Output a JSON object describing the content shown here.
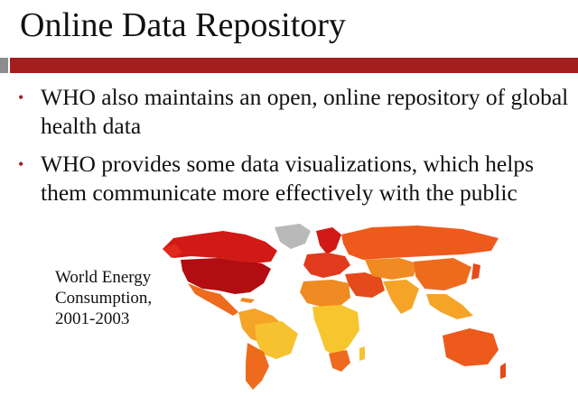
{
  "slide": {
    "title": "Online Data Repository",
    "bullet_symbol": "•",
    "bullets": [
      "WHO also maintains an open, online repository of global health data",
      "WHO provides some data visualizations, which helps them communicate more effectively with the public"
    ],
    "map_caption": "World Energy Consumption, 2001-2003"
  },
  "colors": {
    "accent": "#a41e1e",
    "accent_gray": "#8c8c8c"
  }
}
